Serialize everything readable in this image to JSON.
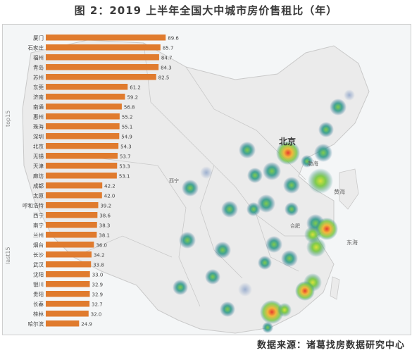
{
  "title": "图 2：2019 上半年全国大中城市房价售租比（年）",
  "source": "数据来源：诸葛找房数据研究中心",
  "side_labels": {
    "top": "top15",
    "bottom": "last15"
  },
  "map_labels": [
    {
      "id": "beijing",
      "text": "北京"
    },
    {
      "id": "bohai",
      "text": "渤海"
    },
    {
      "id": "huanghai",
      "text": "黄海"
    },
    {
      "id": "donghai",
      "text": "东海"
    },
    {
      "id": "hefei",
      "text": "合肥"
    },
    {
      "id": "xining",
      "text": "西宁"
    }
  ],
  "colors": {
    "bar": "#e07b2e",
    "heat_low": "#1f7d8c",
    "heat_mid": "#7ac943",
    "heat_high": "#e63b2e",
    "land": "#ececec",
    "sea": "#f4f6f7"
  },
  "chart_data": {
    "type": "bar",
    "orientation": "horizontal",
    "title": "图 2：2019 上半年全国大中城市房价售租比（年）",
    "categories": [
      "厦门",
      "石家庄",
      "福州",
      "青岛",
      "苏州",
      "东莞",
      "济南",
      "南通",
      "惠州",
      "珠海",
      "深圳",
      "北京",
      "无锡",
      "天津",
      "廊坊",
      "成都",
      "太原",
      "呼和浩特",
      "西宁",
      "南宁",
      "兰州",
      "烟台",
      "长沙",
      "武汉",
      "沈阳",
      "银川",
      "贵阳",
      "长春",
      "桂林",
      "哈尔滨"
    ],
    "values": [
      89.6,
      85.7,
      84.7,
      84.3,
      82.5,
      61.2,
      59.2,
      56.8,
      55.2,
      55.1,
      54.9,
      54.3,
      53.7,
      53.3,
      53.1,
      42.2,
      42.0,
      39.2,
      38.6,
      38.3,
      38.1,
      36.0,
      34.2,
      33.8,
      33.0,
      32.9,
      32.9,
      32.7,
      32.0,
      24.9
    ],
    "xlim": [
      0,
      100
    ],
    "groups": [
      {
        "name": "top15",
        "from": 0,
        "to": 14
      },
      {
        "name": "last15",
        "from": 15,
        "to": 29
      }
    ]
  }
}
